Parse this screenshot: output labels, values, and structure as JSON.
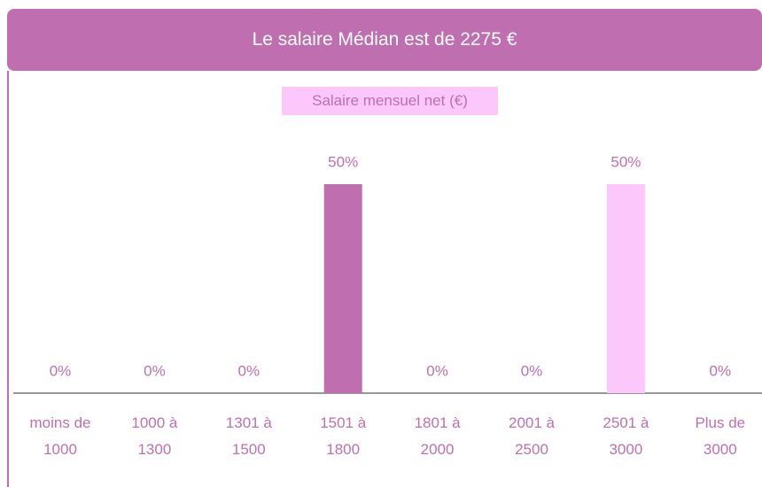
{
  "header": {
    "title": "Le salaire Médian est de  2275 €"
  },
  "chart_data": {
    "type": "bar",
    "title": "Salaire mensuel net (€)",
    "categories": [
      "moins de 1000",
      "1000 à 1300",
      "1301 à 1500",
      "1501 à 1800",
      "1801 à 2000",
      "2001 à 2500",
      "2501 à 3000",
      "Plus de 3000"
    ],
    "values": [
      0,
      0,
      0,
      50,
      0,
      0,
      50,
      0
    ],
    "value_labels": [
      "0%",
      "0%",
      "0%",
      "50%",
      "0%",
      "0%",
      "50%",
      "0%"
    ],
    "colors": [
      "#bf6fb0",
      "#bf6fb0",
      "#bf6fb0",
      "#bf6fb0",
      "#bf6fb0",
      "#bf6fb0",
      "#fcc8fc",
      "#bf6fb0"
    ]
  }
}
